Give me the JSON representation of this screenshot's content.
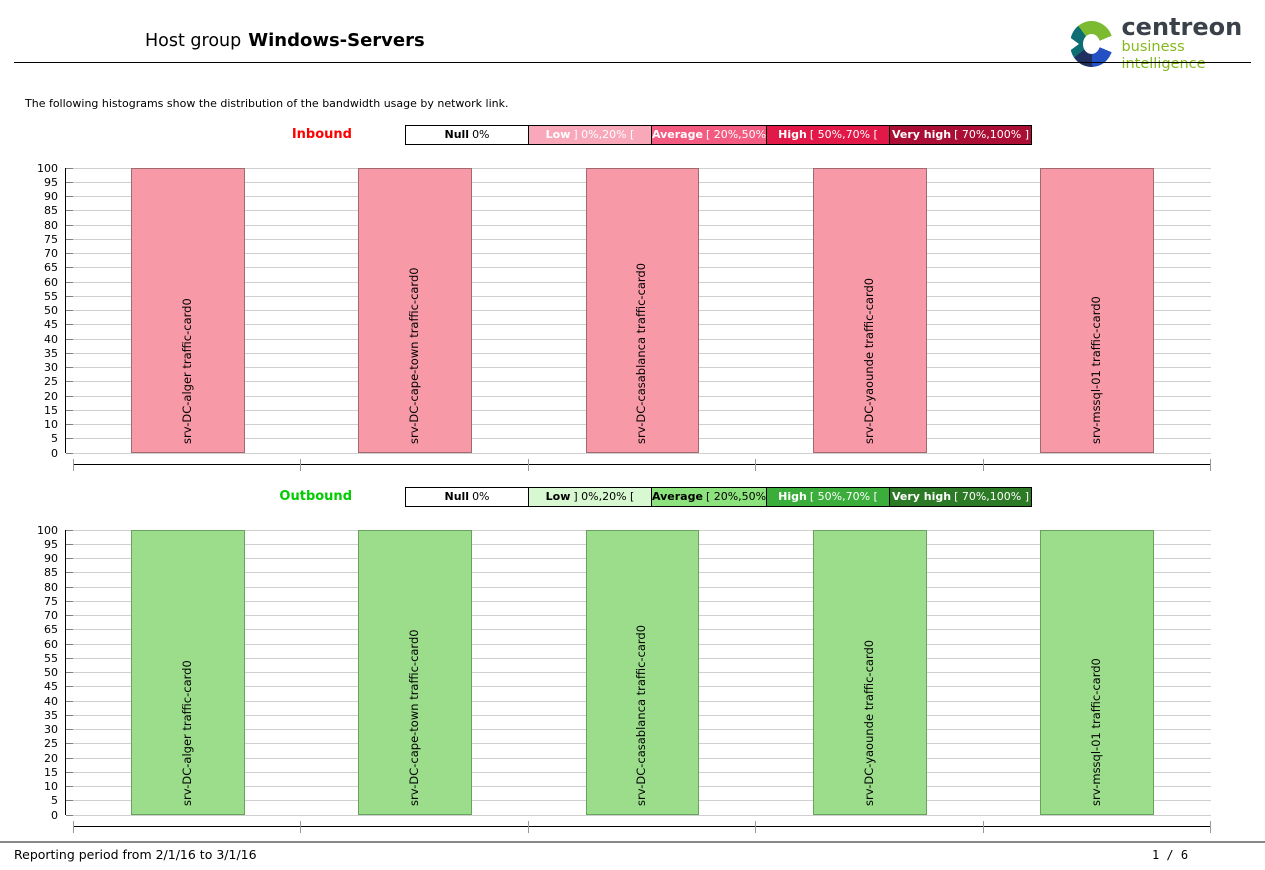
{
  "header": {
    "title_prefix": "Host group",
    "title_emphasis": "Windows-Servers",
    "logo": {
      "brand": "centreon",
      "subtitle": "business intelligence",
      "ring_colors": {
        "green": "#7cbb31",
        "teal": "#0d6e74",
        "navy": "#203061",
        "blue": "#2351c4"
      }
    }
  },
  "intro_text": "The following histograms show the distribution of the bandwidth usage by network link.",
  "chart_data": [
    {
      "type": "bar",
      "direction_label": "Inbound",
      "label_color": "#ff0000",
      "categories": [
        "srv-DC-alger traffic-card0",
        "srv-DC-cape-town traffic-card0",
        "srv-DC-casablanca traffic-card0",
        "srv-DC-yaounde traffic-card0",
        "srv-mssql-01 traffic-card0"
      ],
      "values": [
        100,
        100,
        100,
        100,
        100
      ],
      "ylim": [
        0,
        100
      ],
      "ytick_step": 5,
      "grid": true,
      "bar_fill": "#f899a8",
      "bar_border": "#a06a70",
      "legend_position": "top",
      "legend": [
        {
          "label": "Null",
          "range": "0%",
          "bg": "#ffffff",
          "fg": "#000000"
        },
        {
          "label": "Low",
          "range": "] 0%,20% [",
          "bg": "#f9a8ba",
          "fg": "#ffffff"
        },
        {
          "label": "Average",
          "range": "[ 20%,50% [",
          "bg": "#f35c80",
          "fg": "#ffffff"
        },
        {
          "label": "High",
          "range": "[ 50%,70% [",
          "bg": "#e21848",
          "fg": "#ffffff"
        },
        {
          "label": "Very high",
          "range": "[ 70%,100% ]",
          "bg": "#ab0e34",
          "fg": "#ffffff"
        }
      ]
    },
    {
      "type": "bar",
      "direction_label": "Outbound",
      "label_color": "#00cc00",
      "categories": [
        "srv-DC-alger traffic-card0",
        "srv-DC-cape-town traffic-card0",
        "srv-DC-casablanca traffic-card0",
        "srv-DC-yaounde traffic-card0",
        "srv-mssql-01 traffic-card0"
      ],
      "values": [
        100,
        100,
        100,
        100,
        100
      ],
      "ylim": [
        0,
        100
      ],
      "ytick_step": 5,
      "grid": true,
      "bar_fill": "#9bdd8b",
      "bar_border": "#67a35c",
      "legend_position": "top",
      "legend": [
        {
          "label": "Null",
          "range": "0%",
          "bg": "#ffffff",
          "fg": "#000000"
        },
        {
          "label": "Low",
          "range": "] 0%,20% [",
          "bg": "#d7f8d0",
          "fg": "#000000"
        },
        {
          "label": "Average",
          "range": "[ 20%,50% [",
          "bg": "#8ce27c",
          "fg": "#000000"
        },
        {
          "label": "High",
          "range": "[ 50%,70% [",
          "bg": "#3bad3b",
          "fg": "#ffffff"
        },
        {
          "label": "Very high",
          "range": "[ 70%,100% ]",
          "bg": "#2c7a25",
          "fg": "#ffffff"
        }
      ]
    }
  ],
  "footer": {
    "left": "Reporting period from 2/1/16 to 3/1/16",
    "right": "1 / 6"
  }
}
